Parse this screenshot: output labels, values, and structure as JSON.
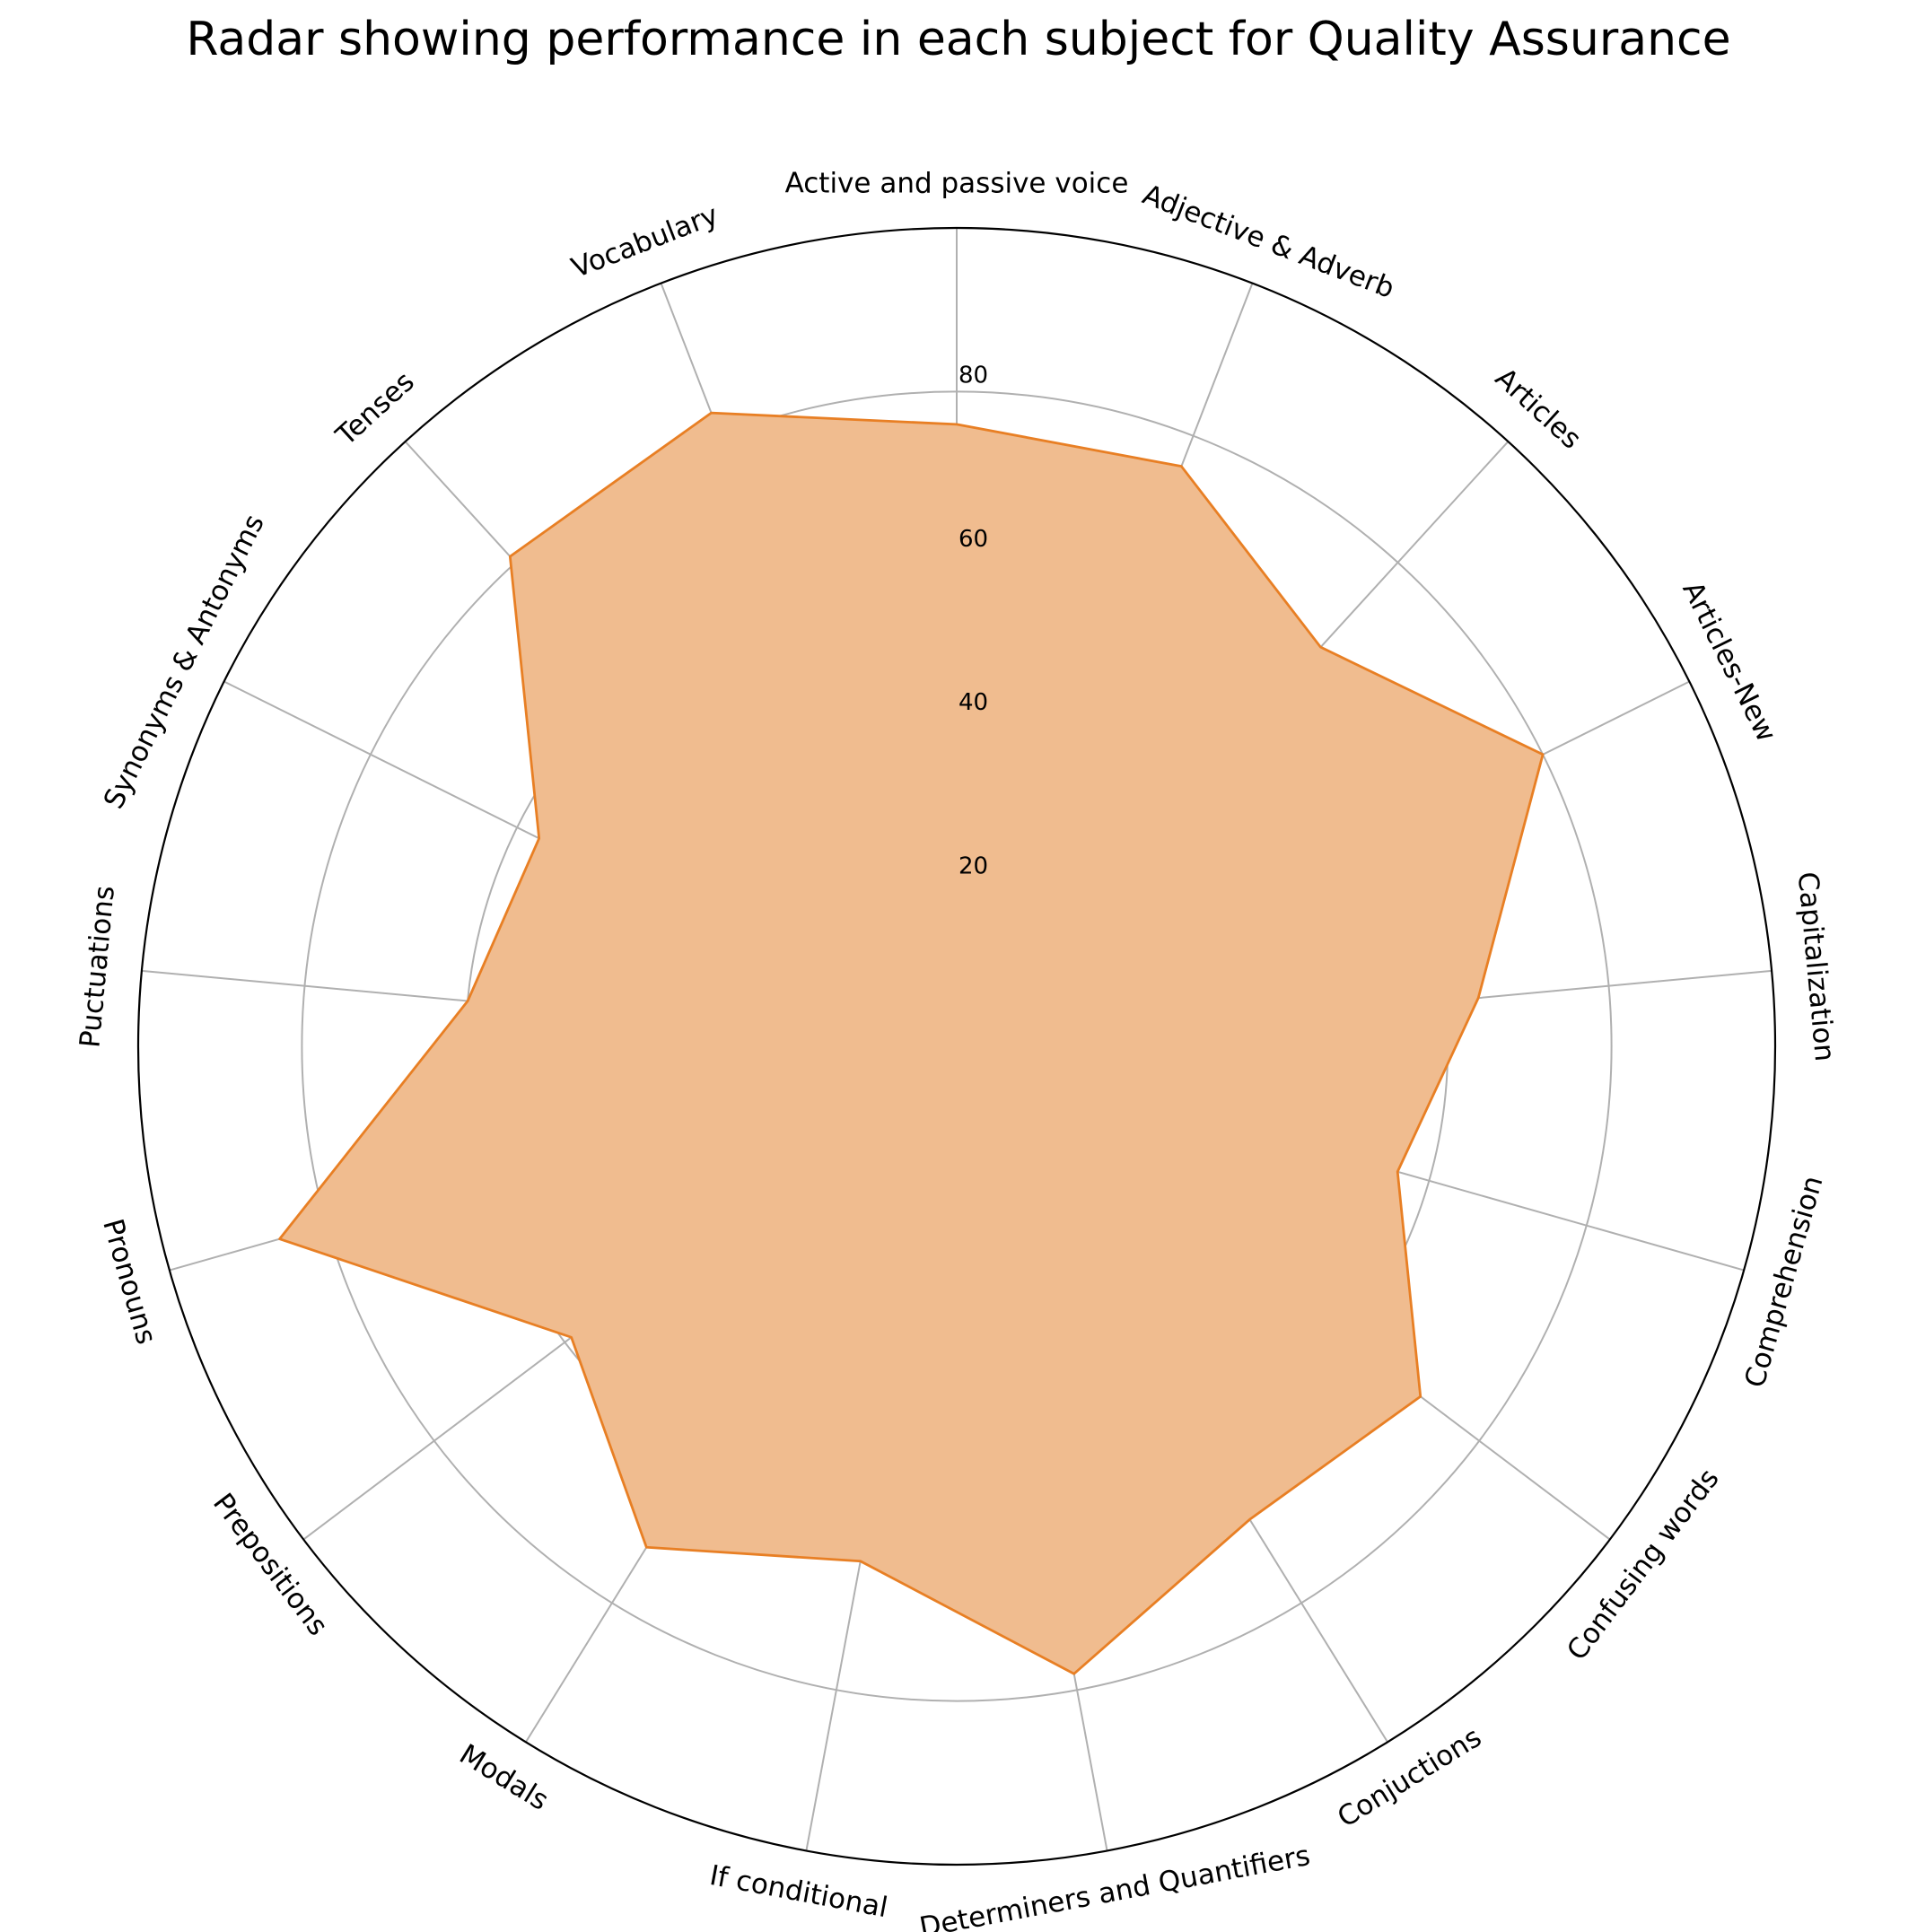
{
  "chart_data": {
    "type": "radar",
    "title": "Radar showing performance in each subject for Quality Assurance",
    "categories": [
      "Active and passive voice",
      "Adjective & Adverb",
      "Articles",
      "Articles-New",
      "Capitalization",
      "Comprehension",
      "Confusing words",
      "Conjuctions",
      "Determiners and Quantifiers",
      "If conditional",
      "Modals",
      "Prepositions",
      "Pronouns",
      "Puctuations",
      "Synonyms & Antonyms",
      "Tenses",
      "Vocabulary"
    ],
    "values": [
      76,
      76,
      66,
      80,
      64,
      56,
      71,
      68,
      78,
      64,
      72,
      59,
      86,
      60,
      57,
      81,
      83
    ],
    "rlim": [
      0,
      100
    ],
    "rticks": [
      20,
      40,
      60,
      80
    ],
    "grid": true,
    "colors": {
      "line": "#e87f24",
      "fill": "#f0bc8f"
    }
  }
}
